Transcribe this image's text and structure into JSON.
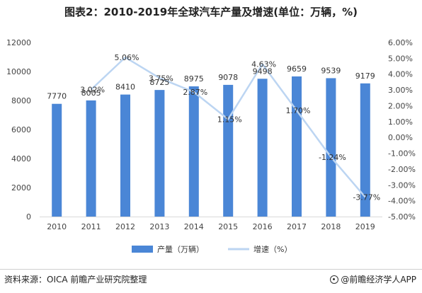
{
  "header": {
    "title": "图表2：2010-2019年全球汽车产量及增速(单位：万辆，%)"
  },
  "chart_data": {
    "type": "bar",
    "categories": [
      "2010",
      "2011",
      "2012",
      "2013",
      "2014",
      "2015",
      "2016",
      "2017",
      "2018",
      "2019"
    ],
    "series": [
      {
        "name": "产量（万辆）",
        "type": "bar",
        "axis": "left",
        "values": [
          7770,
          8005,
          8410,
          8725,
          8975,
          9078,
          9498,
          9659,
          9539,
          9179
        ],
        "labels": [
          "7770",
          "8005",
          "8410",
          "8725",
          "8975",
          "9078",
          "9498",
          "9659",
          "9539",
          "9179"
        ]
      },
      {
        "name": "增速（%）",
        "type": "line",
        "axis": "right",
        "values": [
          null,
          3.02,
          5.06,
          3.75,
          2.87,
          1.15,
          4.63,
          1.7,
          -1.24,
          -3.77
        ],
        "labels": [
          "",
          "3.02%",
          "5.06%",
          "3.75%",
          "2.87%",
          "1.15%",
          "4.63%",
          "1.70%",
          "-1.24%",
          "-3.77%"
        ]
      }
    ],
    "left_axis": {
      "ylim": [
        0,
        12000
      ],
      "ticks": [
        "0",
        "2000",
        "4000",
        "6000",
        "8000",
        "10000",
        "12000"
      ]
    },
    "right_axis": {
      "ylim": [
        -5,
        6
      ],
      "ticks": [
        "-5.00%",
        "-4.00%",
        "-3.00%",
        "-2.00%",
        "-1.00%",
        "0.00%",
        "1.00%",
        "2.00%",
        "3.00%",
        "4.00%",
        "5.00%",
        "6.00%"
      ]
    },
    "legend": {
      "placement": "bottom"
    },
    "grid": false
  },
  "colors": {
    "bar": "#4a86d6",
    "line": "#bcd5f2"
  },
  "footer": {
    "source": "资料来源：OICA 前瞻产业研究院整理",
    "brand": "@前瞻经济学人APP"
  }
}
